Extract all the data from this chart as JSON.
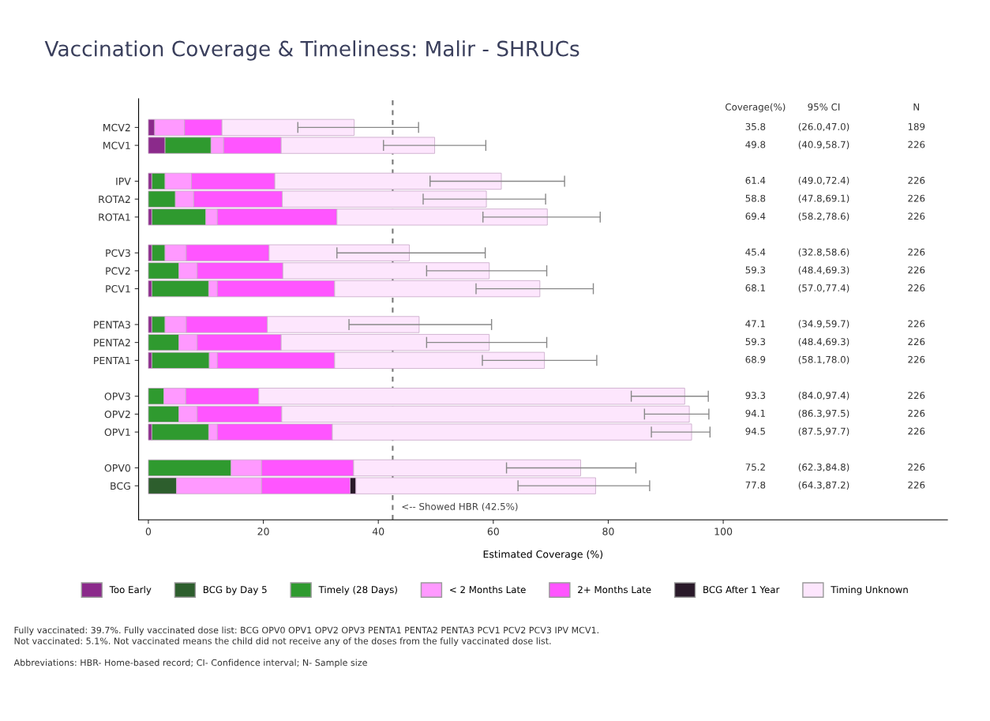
{
  "chart_data": {
    "type": "bar",
    "orientation": "horizontal",
    "stacked": true,
    "title": "Vaccination Coverage & Timeliness: Malir - SHRUCs",
    "xlabel": "Estimated Coverage (%)",
    "categories": [
      "MCV2",
      "MCV1",
      null,
      "IPV",
      "ROTA2",
      "ROTA1",
      null,
      "PCV3",
      "PCV2",
      "PCV1",
      null,
      "PENTA3",
      "PENTA2",
      "PENTA1",
      null,
      "OPV3",
      "OPV2",
      "OPV1",
      null,
      "OPV0",
      "BCG"
    ],
    "series": [
      {
        "name": "Too Early",
        "color": "#8b2a8b",
        "values": [
          1.1,
          2.9,
          null,
          0.6,
          null,
          0.6,
          null,
          0.6,
          null,
          0.6,
          null,
          0.6,
          null,
          0.6,
          null,
          null,
          null,
          0.6,
          null,
          null,
          null
        ]
      },
      {
        "name": "BCG by Day 5",
        "color": "#2d5e2d",
        "values": [
          null,
          null,
          null,
          null,
          null,
          null,
          null,
          null,
          null,
          null,
          null,
          null,
          null,
          null,
          null,
          null,
          null,
          null,
          null,
          null,
          4.9
        ]
      },
      {
        "name": "Timely (28 Days)",
        "color": "#2f9a2f",
        "values": [
          null,
          8.0,
          null,
          2.3,
          4.7,
          9.4,
          null,
          2.3,
          5.3,
          9.9,
          null,
          2.3,
          5.3,
          10.0,
          null,
          2.7,
          5.3,
          9.9,
          null,
          14.4,
          null
        ]
      },
      {
        "name": "< 2 Months Late",
        "color": "#ff99ff",
        "values": [
          5.2,
          2.2,
          null,
          4.6,
          3.2,
          2.0,
          null,
          3.7,
          3.2,
          1.5,
          null,
          3.7,
          3.2,
          1.4,
          null,
          3.8,
          3.2,
          1.5,
          null,
          5.3,
          14.8
        ]
      },
      {
        "name": "2+ Months Late",
        "color": "#ff55ff",
        "values": [
          6.5,
          10.0,
          null,
          14.5,
          15.4,
          20.8,
          null,
          14.4,
          14.9,
          20.4,
          null,
          14.1,
          14.6,
          20.4,
          null,
          12.7,
          14.7,
          20.0,
          null,
          16.0,
          15.4
        ]
      },
      {
        "name": "BCG After 1 Year",
        "color": "#2a1a2a",
        "values": [
          null,
          null,
          null,
          null,
          null,
          null,
          null,
          null,
          null,
          null,
          null,
          null,
          null,
          null,
          null,
          null,
          null,
          null,
          null,
          null,
          1.0
        ]
      },
      {
        "name": "Timing Unknown",
        "color": "#fde6fd",
        "values": [
          23.0,
          26.7,
          null,
          39.4,
          35.5,
          36.6,
          null,
          24.4,
          35.9,
          35.7,
          null,
          26.4,
          36.2,
          36.5,
          null,
          74.1,
          70.9,
          62.5,
          null,
          39.5,
          41.7
        ],
        "errors": [
          [
            26.0,
            47.0
          ],
          [
            40.9,
            58.7
          ],
          null,
          [
            49.0,
            72.4
          ],
          [
            47.8,
            69.1
          ],
          [
            58.2,
            78.6
          ],
          null,
          [
            32.8,
            58.6
          ],
          [
            48.4,
            69.3
          ],
          [
            57.0,
            77.4
          ],
          null,
          [
            34.9,
            59.7
          ],
          [
            48.4,
            69.3
          ],
          [
            58.1,
            78.0
          ],
          null,
          [
            84.0,
            97.4
          ],
          [
            86.3,
            97.5
          ],
          [
            87.5,
            97.7
          ],
          null,
          [
            62.3,
            84.8
          ],
          [
            64.3,
            87.2
          ]
        ]
      }
    ],
    "xlim": [
      -1.7,
      139
    ],
    "xticks": [
      0,
      20,
      40,
      60,
      80,
      100
    ],
    "ref_lines": [
      {
        "axis": "x",
        "value": 42.5,
        "label": "<-- Showed HBR (42.5%)",
        "color": "#777777",
        "line_style": "dashed"
      }
    ],
    "legend": "bottom",
    "grid": false,
    "annotations": [
      "Coverage(%)",
      "95% CI",
      "N",
      "35.8",
      "(26.0,47.0)",
      "189",
      "49.8",
      "(40.9,58.7)",
      "226",
      "61.4",
      "(49.0,72.4)",
      "226",
      "58.8",
      "(47.8,69.1)",
      "226",
      "69.4",
      "(58.2,78.6)",
      "226",
      "45.4",
      "(32.8,58.6)",
      "226",
      "59.3",
      "(48.4,69.3)",
      "226",
      "68.1",
      "(57.0,77.4)",
      "226",
      "47.1",
      "(34.9,59.7)",
      "226",
      "59.3",
      "(48.4,69.3)",
      "226",
      "68.9",
      "(58.1,78.0)",
      "226",
      "93.3",
      "(84.0,97.4)",
      "226",
      "94.1",
      "(86.3,97.5)",
      "226",
      "94.5",
      "(87.5,97.7)",
      "226",
      "75.2",
      "(62.3,84.8)",
      "226",
      "77.8",
      "(64.3,87.2)",
      "226",
      "Fully vaccinated: 39.7%. Fully vaccinated dose list: BCG OPV0 OPV1 OPV2 OPV3 PENTA1 PENTA2 PENTA3 PCV1 PCV2 PCV3 IPV MCV1.",
      "Not vaccinated: 5.1%. Not vaccinated means the child did not receive any of the doses from the fully vaccinated dose list.",
      "Abbreviations: HBR- Home-based record; CI- Confidence interval; N- Sample size"
    ]
  }
}
